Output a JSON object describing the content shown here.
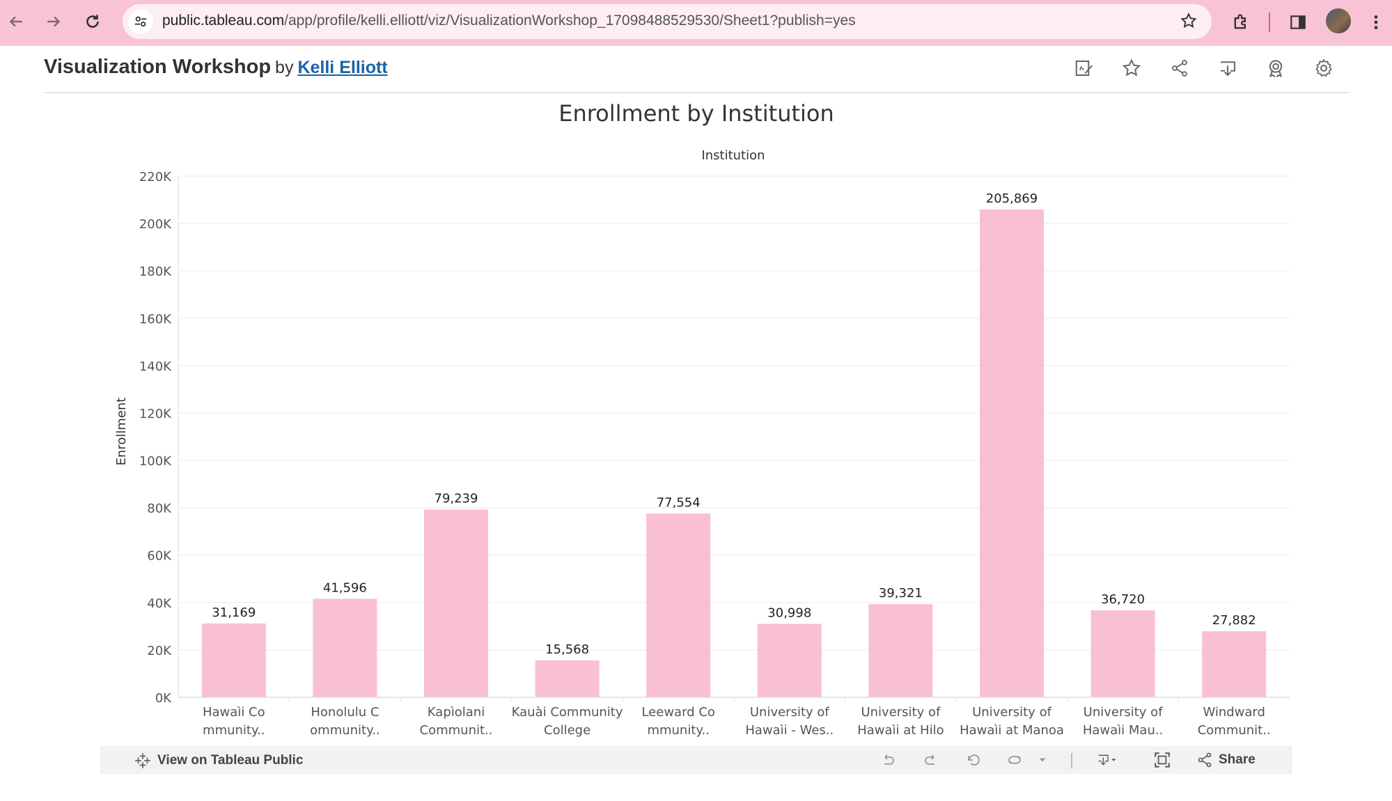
{
  "browser": {
    "url_domain": "public.tableau.com",
    "url_path": "/app/profile/kelli.elliott/viz/VisualizationWorkshop_17098488529530/Sheet1?publish=yes"
  },
  "viz": {
    "title": "Visualization Workshop",
    "by": "by",
    "author": "Kelli Elliott"
  },
  "toolbar_icons": [
    "edit-metadata-icon",
    "favorite-star-icon",
    "share-icon",
    "download-icon",
    "award-icon",
    "settings-gear-icon"
  ],
  "chart_data": {
    "type": "bar",
    "title": "Enrollment by Institution",
    "xlabel": "Institution",
    "ylabel": "Enrollment",
    "ylim": [
      0,
      220000
    ],
    "yticks": [
      0,
      20000,
      40000,
      60000,
      80000,
      100000,
      120000,
      140000,
      160000,
      180000,
      200000,
      220000
    ],
    "ytick_labels": [
      "0K",
      "20K",
      "40K",
      "60K",
      "80K",
      "100K",
      "120K",
      "140K",
      "160K",
      "180K",
      "200K",
      "220K"
    ],
    "grid": true,
    "color": "#f9bfd4",
    "categories": [
      [
        "Hawaìi Co",
        "mmunity.."
      ],
      [
        "Honolulu C",
        "ommunity.."
      ],
      [
        "Kapìolani",
        "Communit.."
      ],
      [
        "Kauài Community",
        "College"
      ],
      [
        "Leeward Co",
        "mmunity.."
      ],
      [
        "University of",
        "Hawaìi - Wes.."
      ],
      [
        "University of",
        "Hawaìi at Hilo"
      ],
      [
        "University of",
        "Hawaìi at Manoa"
      ],
      [
        "University of",
        "Hawaìi Mau.."
      ],
      [
        "Windward",
        "Communit.."
      ]
    ],
    "values": [
      31169,
      41596,
      79239,
      15568,
      77554,
      30998,
      39321,
      205869,
      36720,
      27882
    ],
    "value_labels": [
      "31,169",
      "41,596",
      "79,239",
      "15,568",
      "77,554",
      "30,998",
      "39,321",
      "205,869",
      "36,720",
      "27,882"
    ]
  },
  "bottom_bar": {
    "view_on_tableau": "View on Tableau Public",
    "share": "Share"
  }
}
